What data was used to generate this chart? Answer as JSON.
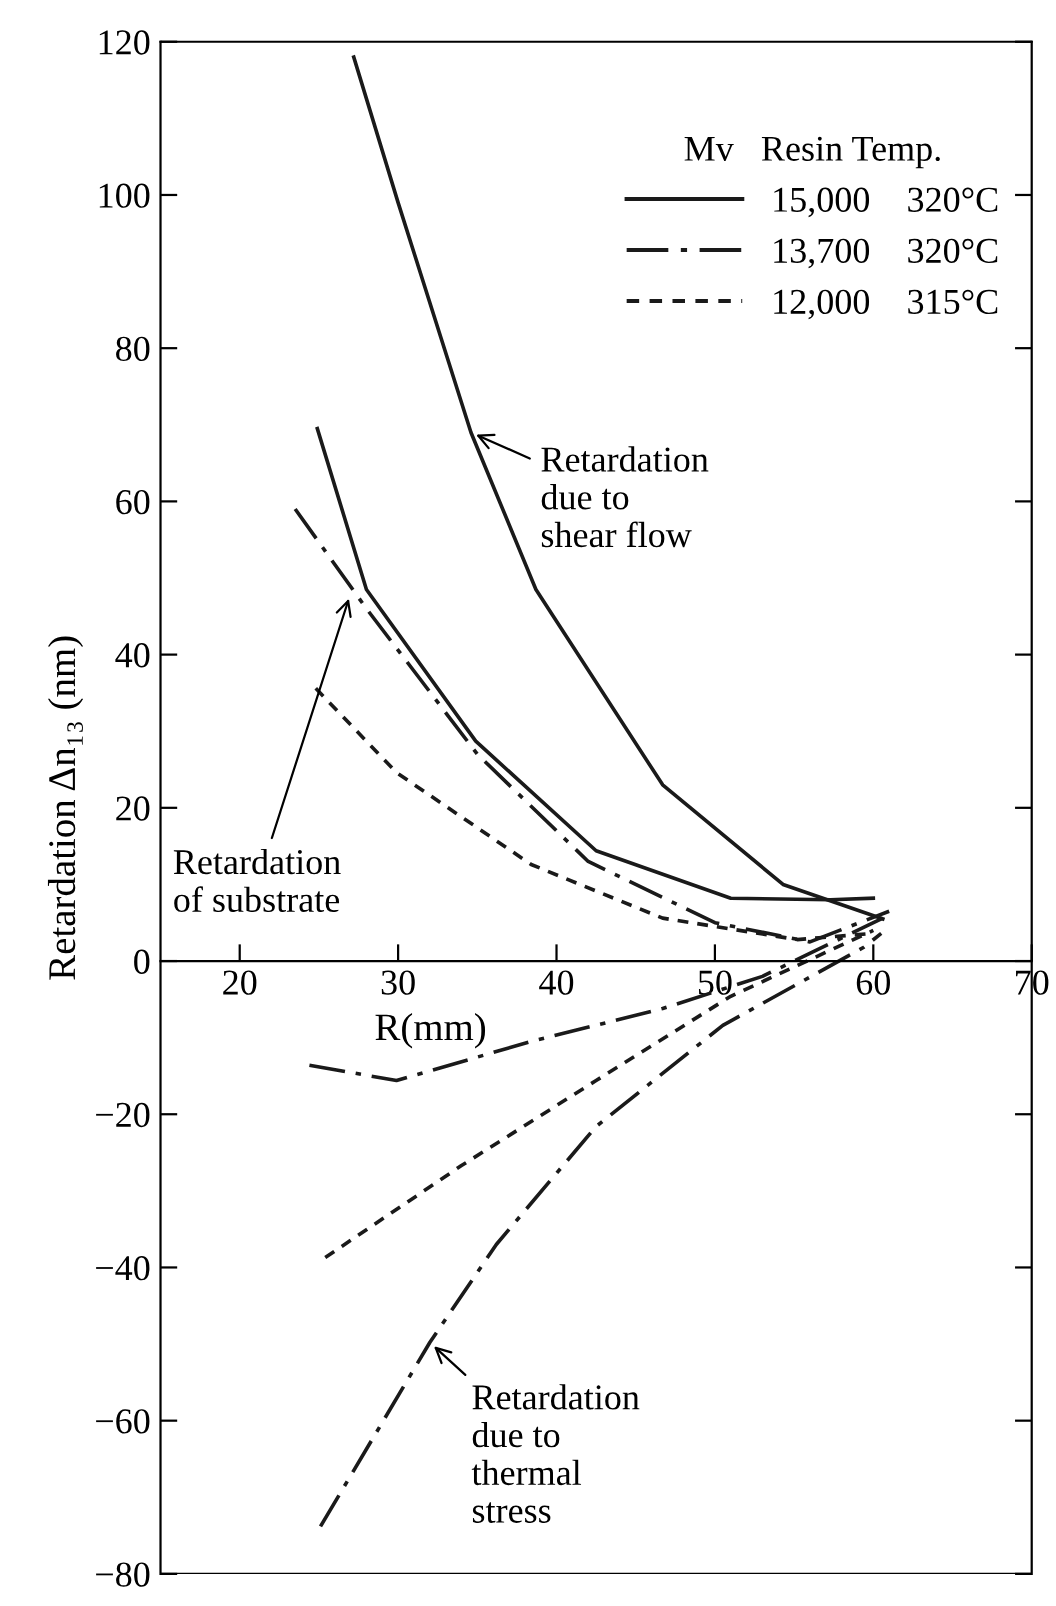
{
  "chart_data": {
    "type": "line",
    "xlabel": "R(mm)",
    "ylabel": "Retardation Δn₁₃ (nm)",
    "legend_title": "Mv   Resin Temp.",
    "legend": "top right",
    "grid": false,
    "xlim": [
      15,
      70
    ],
    "ylim": [
      -80,
      120
    ],
    "xticks": [
      20,
      30,
      40,
      50,
      60,
      70
    ],
    "yticks": [
      -80,
      -60,
      -40,
      -20,
      0,
      20,
      40,
      60,
      80,
      100,
      120
    ],
    "series": [
      {
        "name": "15,000    320°C",
        "color": "#1a1a1a",
        "line_style": "solid",
        "x": [
          27.2,
          30,
          34.6,
          38.7,
          46.7,
          54.3,
          60.6
        ],
        "values": [
          118,
          99,
          69,
          48.5,
          23,
          10,
          5.5
        ]
      },
      {
        "color": "#1a1a1a",
        "line_style": "solid",
        "x": [
          24.9,
          28,
          34.9,
          42.5,
          51,
          57.3,
          60
        ],
        "values": [
          69.5,
          48.5,
          28.7,
          14.4,
          8.2,
          8,
          8.2
        ]
      },
      {
        "name": "13,700    320°C",
        "color": "#1a1a1a",
        "line_style": "dashdot",
        "x": [
          23.5,
          28,
          35,
          42,
          50,
          56,
          61
        ],
        "values": [
          59,
          46,
          27,
          13,
          5,
          2.5,
          6.5
        ]
      },
      {
        "name": "12,000    315°C",
        "color": "#1a1a1a",
        "line_style": "dotted",
        "x": [
          24.8,
          29.9,
          38.4,
          46.7,
          55.2,
          59.9
        ],
        "values": [
          35.6,
          24.6,
          12.6,
          5.6,
          2.8,
          3.6
        ]
      },
      {
        "color": "#1a1a1a",
        "line_style": "dashdot",
        "x": [
          24.4,
          29.9,
          38.4,
          46.7,
          53,
          60.6
        ],
        "values": [
          -13.6,
          -15.6,
          -10.5,
          -6.2,
          -2,
          5.6
        ]
      },
      {
        "color": "#1a1a1a",
        "line_style": "dotted",
        "x": [
          25.4,
          34,
          42.5,
          51,
          60
        ],
        "values": [
          -38.7,
          -26.7,
          -15.6,
          -4.6,
          4
        ]
      },
      {
        "color": "#1a1a1a",
        "line_style": "dashdot",
        "x": [
          25.1,
          32,
          36.2,
          42.5,
          50.5,
          59.4,
          60.5
        ],
        "values": [
          -73.8,
          -49.8,
          -37,
          -21.6,
          -8.4,
          1.8,
          3.6
        ]
      }
    ],
    "annotations": [
      {
        "text": "Retardation\ndue to\nshear flow",
        "x": 34.6,
        "y": 69
      },
      {
        "text": "Retardation\nof substrate",
        "x": 27,
        "y": 48
      },
      {
        "text": "Retardation\ndue to\nthermal\nstress",
        "x": 32,
        "y": -49.8
      }
    ]
  }
}
